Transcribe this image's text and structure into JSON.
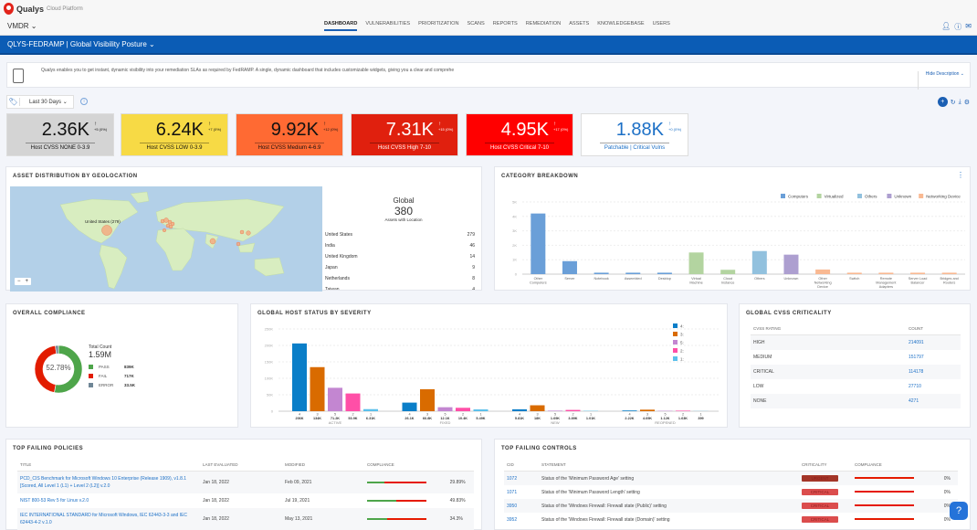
{
  "app": {
    "brand": "Qualys",
    "brand_sub": "Cloud Platform",
    "module": "VMDR"
  },
  "nav": [
    "DASHBOARD",
    "VULNERABILITIES",
    "PRIORITIZATION",
    "SCANS",
    "REPORTS",
    "REMEDIATION",
    "ASSETS",
    "KNOWLEDGEBASE",
    "USERS"
  ],
  "nav_active": "DASHBOARD",
  "dashboard_title": "QLYS-FEDRAMP | Global Visibility Posture",
  "description": {
    "text": "Qualys enables you to get instant, dynamic visibility into your remediation SLAs as required by FedRAMP. A single, dynamic dashboard that includes customizable widgets, giving you a clear and comprehe",
    "hide_label": "Hide Description"
  },
  "filter": {
    "range": "Last 30 Days"
  },
  "kpis": [
    {
      "value": "2.36K",
      "delta": "+5 (0%)",
      "label": "Host CVSS NONE 0-3.9",
      "bg": "#d4d4d4",
      "fg": "#111"
    },
    {
      "value": "6.24K",
      "delta": "+7 (0%)",
      "label": "Host CVSS LOW 0-3.9",
      "bg": "#f7da45",
      "fg": "#111"
    },
    {
      "value": "9.92K",
      "delta": "+12 (0%)",
      "label": "Host CVSS Medium 4-6.9",
      "bg": "#ff6a33",
      "fg": "#111"
    },
    {
      "value": "7.31K",
      "delta": "+15 (0%)",
      "label": "Host CVSS High 7-10",
      "bg": "#e0200e",
      "fg": "#fff"
    },
    {
      "value": "4.95K",
      "delta": "+17 (0%)",
      "label": "Host CVSS Critical 7-10",
      "bg": "#ff0000",
      "fg": "#fff"
    },
    {
      "value": "1.88K",
      "delta": "+0 (0%)",
      "label": "Patchable | Critical Vulns",
      "bg": "#ffffff",
      "fg": "#1b6fc6"
    }
  ],
  "geo": {
    "title": "ASSET DISTRIBUTION BY GEOLOCATION",
    "map_label": "United States (279)",
    "global_label": "Global",
    "total": "380",
    "total_label": "Assets with Location",
    "countries": [
      {
        "name": "United States",
        "count": "279"
      },
      {
        "name": "India",
        "count": "46"
      },
      {
        "name": "United Kingdom",
        "count": "14"
      },
      {
        "name": "Japan",
        "count": "9"
      },
      {
        "name": "Netherlands",
        "count": "8"
      },
      {
        "name": "Taiwan",
        "count": "4"
      }
    ],
    "zoom_out": "−",
    "zoom_in": "+"
  },
  "category": {
    "title": "CATEGORY BREAKDOWN"
  },
  "compliance": {
    "title": "OVERALL COMPLIANCE",
    "center": "52.78%",
    "total_label": "Total Count",
    "total": "1.59M",
    "items": [
      {
        "label": "PASS",
        "value": "839K",
        "color": "#4ea54a",
        "pct": 52.78
      },
      {
        "label": "FAIL",
        "value": "717K",
        "color": "#e21c00",
        "pct": 45.11
      },
      {
        "label": "ERROR",
        "value": "33.5K",
        "color": "#6f8696",
        "pct": 2.11
      }
    ]
  },
  "host_status": {
    "title": "GLOBAL HOST STATUS BY SEVERITY"
  },
  "cvss": {
    "title": "GLOBAL CVSS CRITICALITY",
    "headers": [
      "CVSS RATING",
      "COUNT"
    ],
    "rows": [
      [
        "HIGH",
        "214091"
      ],
      [
        "MEDIUM",
        "151797"
      ],
      [
        "CRITICAL",
        "114178"
      ],
      [
        "LOW",
        "27710"
      ],
      [
        "NONE",
        "4271"
      ]
    ]
  },
  "policies": {
    "title": "TOP FAILING POLICIES",
    "headers": [
      "TITLE",
      "LAST EVALUATED",
      "MODIFIED",
      "COMPLIANCE",
      ""
    ],
    "rows": [
      {
        "title": "PCD_CIS Benchmark for Microsoft Windows 10 Enterprise (Release 1909), v1.8.1 [Scored, All Level 1 (L1) + Level 2 (L2)] v.2.0",
        "evaluated": "Jan 18, 2022",
        "modified": "Feb 09, 2021",
        "compliance": "29.89%",
        "pct": 29.89
      },
      {
        "title": "NIST 800-53 Rev 5 for Linux v.2.0",
        "evaluated": "Jan 18, 2022",
        "modified": "Jul 19, 2021",
        "compliance": "49.83%",
        "pct": 49.83
      },
      {
        "title": "IEC INTERNATIONAL STANDARD for Microsoft Windows, IEC 62443-3-3 and IEC 62443-4-2 v.1.0",
        "evaluated": "Jan 18, 2022",
        "modified": "May 13, 2021",
        "compliance": "34.3%",
        "pct": 34.3
      }
    ]
  },
  "controls": {
    "title": "TOP FAILING CONTROLS",
    "headers": [
      "CID",
      "STATEMENT",
      "CRITICALITY",
      "COMPLIANCE",
      ""
    ],
    "rows": [
      {
        "cid": "1072",
        "statement": "Status of the 'Minimum Password Age' setting",
        "criticality": "URGENT",
        "compliance": "0%"
      },
      {
        "cid": "1071",
        "statement": "Status of the 'Minimum Password Length' setting",
        "criticality": "CRITICAL",
        "compliance": "0%"
      },
      {
        "cid": "3950",
        "statement": "Status of the 'Windows Firewall: Firewall state (Public)' setting",
        "criticality": "CRITICAL",
        "compliance": "0%"
      },
      {
        "cid": "3952",
        "statement": "Status of the 'Windows Firewall: Firewall state (Domain)' setting",
        "criticality": "CRITICAL",
        "compliance": "0%"
      }
    ]
  },
  "chart_data": [
    {
      "type": "bar",
      "title": "CATEGORY BREAKDOWN",
      "ylim": [
        0,
        5000
      ],
      "yticks": [
        "0",
        "1K",
        "2K",
        "3K",
        "4K",
        "5K"
      ],
      "grid": true,
      "legend_placement": "top-right",
      "legend": [
        {
          "name": "Computers",
          "color": "#6a9fd8"
        },
        {
          "name": "Virtualized",
          "color": "#b3d4a0"
        },
        {
          "name": "Others",
          "color": "#92c1de"
        },
        {
          "name": "Unknown",
          "color": "#ad9fd0"
        },
        {
          "name": "Networking Device",
          "color": "#f9b992"
        }
      ],
      "categories": [
        "Other Computers",
        "Server",
        "Notebook",
        "Assembled",
        "Desktop",
        "Virtual Machine",
        "Cloud Instance",
        "Others",
        "Unknown",
        "Other Networking Device",
        "Switch",
        "Remote Management Adapters",
        "Server Load Balancer",
        "Bridges and Routers"
      ],
      "groups": [
        0,
        0,
        0,
        0,
        0,
        1,
        1,
        2,
        3,
        4,
        4,
        4,
        4,
        4
      ],
      "values": [
        4200,
        900,
        100,
        100,
        100,
        1500,
        300,
        1600,
        1350,
        320,
        100,
        100,
        100,
        100
      ]
    },
    {
      "type": "bar",
      "title": "GLOBAL HOST STATUS BY SEVERITY",
      "ylim": [
        0,
        250000
      ],
      "yticks": [
        "0",
        "50K",
        "100K",
        "150K",
        "200K",
        "250K"
      ],
      "grid": true,
      "legend_placement": "top-right",
      "categories": [
        "ACTIVE",
        "FIXED",
        "NEW",
        "REOPENED"
      ],
      "series": [
        {
          "name": "4",
          "color": "#0a7ec8",
          "values": [
            206000,
            26100,
            5810,
            2220
          ],
          "labels": [
            "206K",
            "26.1K",
            "5.81K",
            "2.22K"
          ]
        },
        {
          "name": "3",
          "color": "#d96b00",
          "values": [
            134000,
            66800,
            18000,
            4690
          ],
          "labels": [
            "134K",
            "66.8K",
            "18K",
            "4.69K"
          ]
        },
        {
          "name": "5",
          "color": "#c386d1",
          "values": [
            71200,
            12100,
            1690,
            1120
          ],
          "labels": [
            "71.2K",
            "12.1K",
            "1.69K",
            "1.12K"
          ]
        },
        {
          "name": "2",
          "color": "#ff4fa7",
          "values": [
            53900,
            10400,
            3890,
            1630
          ],
          "labels": [
            "53.9K",
            "10.4K",
            "3.89K",
            "1.63K"
          ]
        },
        {
          "name": "1",
          "color": "#5bc0eb",
          "values": [
            6310,
            5490,
            1010,
            399
          ],
          "labels": [
            "6.31K",
            "5.49K",
            "1.01K",
            "399"
          ]
        }
      ]
    }
  ]
}
